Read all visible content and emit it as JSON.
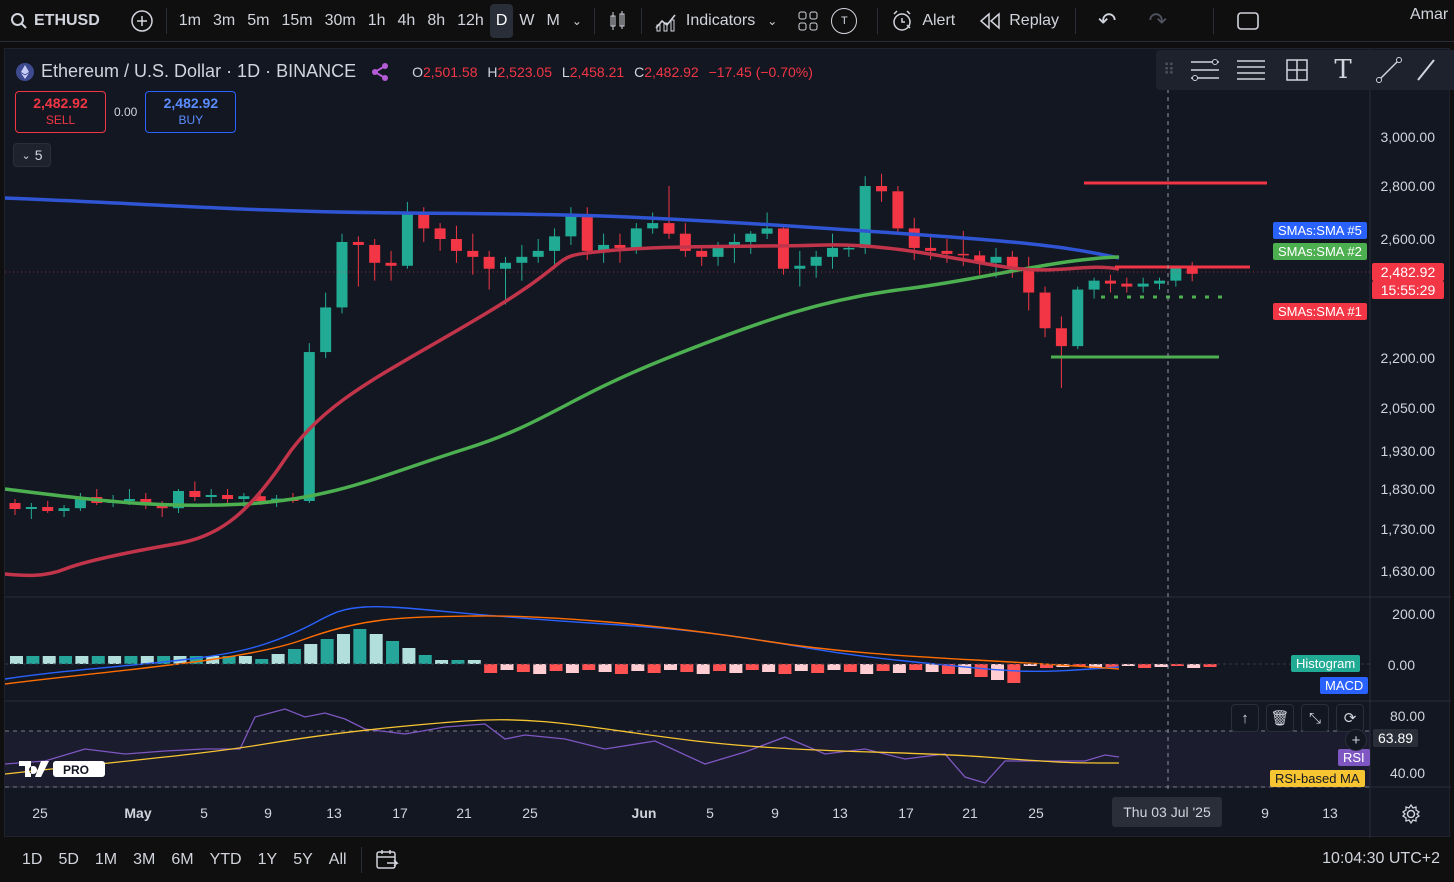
{
  "toolbar": {
    "symbol": "ETHUSD",
    "intervals": [
      "1m",
      "3m",
      "5m",
      "15m",
      "30m",
      "1h",
      "4h",
      "8h",
      "12h",
      "D",
      "W",
      "M"
    ],
    "active_interval": "D",
    "indicators_label": "Indicators",
    "t_label": "T",
    "alert_label": "Alert",
    "replay_label": "Replay",
    "user_label": "Amar"
  },
  "legend": {
    "title": "Ethereum / U.S. Dollar · 1D · BINANCE",
    "o_key": "O",
    "o_val": "2,501.58",
    "h_key": "H",
    "h_val": "2,523.05",
    "l_key": "L",
    "l_val": "2,458.21",
    "c_key": "C",
    "c_val": "2,482.92",
    "change": "−17.45 (−0.70%)"
  },
  "trade": {
    "sell_price": "2,482.92",
    "sell_label": "SELL",
    "spread": "0.00",
    "buy_price": "2,482.92",
    "buy_label": "BUY"
  },
  "collapse_count": "5",
  "price_axis": {
    "labels": [
      "3,000.00",
      "2,800.00",
      "2,600.00",
      "2,200.00",
      "2,050.00",
      "1,930.00",
      "1,830.00",
      "1,730.00",
      "1,630.00"
    ],
    "current_price": "2,482.92",
    "countdown": "15:55:29"
  },
  "tags": {
    "sma5": "SMAs:SMA #5",
    "sma2": "SMAs:SMA #2",
    "sma1": "SMAs:SMA #1",
    "histogram": "Histogram",
    "macd": "MACD",
    "rsi": "RSI",
    "rsi_ma": "RSI-based MA"
  },
  "macd_axis": {
    "top": "200.00",
    "zero": "0.00"
  },
  "rsi_axis": {
    "top": "80.00",
    "value": "63.89",
    "bottom": "40.00"
  },
  "date_axis": {
    "labels": [
      "25",
      "May",
      "5",
      "9",
      "13",
      "17",
      "21",
      "25",
      "Jun",
      "5",
      "9",
      "13",
      "17",
      "21",
      "25",
      "9",
      "13"
    ],
    "crosshair_date": "Thu 03 Jul '25"
  },
  "bottom": {
    "ranges": [
      "1D",
      "5D",
      "1M",
      "3M",
      "6M",
      "YTD",
      "1Y",
      "5Y",
      "All"
    ],
    "clock": "10:04:30 UTC+2"
  },
  "colors": {
    "up": "#22ab94",
    "down": "#f23645",
    "sma_blue": "#2f55d4",
    "sma_green": "#4caf50",
    "sma_red": "#c2344a",
    "bg": "#131722"
  },
  "chart_data": {
    "type": "candlestick",
    "ylim": [
      1590,
      3080
    ],
    "candles": [
      [
        1795,
        1805,
        1765,
        1780
      ],
      [
        1780,
        1795,
        1755,
        1785
      ],
      [
        1785,
        1800,
        1770,
        1775
      ],
      [
        1775,
        1790,
        1760,
        1782
      ],
      [
        1782,
        1820,
        1775,
        1810
      ],
      [
        1810,
        1830,
        1790,
        1795
      ],
      [
        1795,
        1815,
        1785,
        1800
      ],
      [
        1800,
        1830,
        1790,
        1805
      ],
      [
        1805,
        1820,
        1780,
        1790
      ],
      [
        1790,
        1800,
        1760,
        1782
      ],
      [
        1782,
        1830,
        1770,
        1825
      ],
      [
        1825,
        1850,
        1800,
        1810
      ],
      [
        1810,
        1830,
        1790,
        1815
      ],
      [
        1815,
        1830,
        1795,
        1805
      ],
      [
        1805,
        1820,
        1785,
        1812
      ],
      [
        1812,
        1822,
        1790,
        1800
      ],
      [
        1800,
        1815,
        1785,
        1806
      ],
      [
        1806,
        1820,
        1795,
        1800
      ],
      [
        1800,
        2250,
        1795,
        2220
      ],
      [
        2220,
        2420,
        2200,
        2370
      ],
      [
        2370,
        2620,
        2350,
        2590
      ],
      [
        2590,
        2610,
        2440,
        2580
      ],
      [
        2580,
        2600,
        2460,
        2520
      ],
      [
        2520,
        2560,
        2460,
        2510
      ],
      [
        2510,
        2740,
        2500,
        2700
      ],
      [
        2700,
        2720,
        2590,
        2640
      ],
      [
        2640,
        2660,
        2560,
        2600
      ],
      [
        2600,
        2650,
        2520,
        2560
      ],
      [
        2560,
        2620,
        2480,
        2540
      ],
      [
        2540,
        2560,
        2430,
        2500
      ],
      [
        2500,
        2540,
        2380,
        2520
      ],
      [
        2520,
        2580,
        2460,
        2540
      ],
      [
        2540,
        2600,
        2520,
        2560
      ],
      [
        2560,
        2640,
        2500,
        2610
      ],
      [
        2610,
        2720,
        2580,
        2690
      ],
      [
        2690,
        2720,
        2530,
        2560
      ],
      [
        2560,
        2620,
        2520,
        2580
      ],
      [
        2580,
        2620,
        2520,
        2570
      ],
      [
        2570,
        2660,
        2550,
        2640
      ],
      [
        2640,
        2700,
        2620,
        2660
      ],
      [
        2660,
        2800,
        2600,
        2620
      ],
      [
        2620,
        2660,
        2540,
        2560
      ],
      [
        2560,
        2580,
        2510,
        2540
      ],
      [
        2540,
        2590,
        2510,
        2570
      ],
      [
        2570,
        2620,
        2520,
        2590
      ],
      [
        2590,
        2630,
        2550,
        2620
      ],
      [
        2620,
        2700,
        2600,
        2640
      ],
      [
        2640,
        2650,
        2480,
        2500
      ],
      [
        2500,
        2560,
        2440,
        2510
      ],
      [
        2510,
        2560,
        2470,
        2540
      ],
      [
        2540,
        2620,
        2500,
        2570
      ],
      [
        2570,
        2580,
        2540,
        2570
      ],
      [
        2570,
        2840,
        2550,
        2800
      ],
      [
        2800,
        2850,
        2740,
        2780
      ],
      [
        2780,
        2800,
        2620,
        2640
      ],
      [
        2640,
        2680,
        2530,
        2570
      ],
      [
        2570,
        2620,
        2530,
        2560
      ],
      [
        2560,
        2600,
        2520,
        2550
      ],
      [
        2550,
        2630,
        2510,
        2545
      ],
      [
        2545,
        2560,
        2480,
        2520
      ],
      [
        2520,
        2570,
        2470,
        2540
      ],
      [
        2540,
        2560,
        2470,
        2500
      ],
      [
        2500,
        2540,
        2360,
        2420
      ],
      [
        2420,
        2440,
        2270,
        2300
      ],
      [
        2300,
        2340,
        2110,
        2240
      ],
      [
        2240,
        2440,
        2230,
        2430
      ],
      [
        2430,
        2470,
        2400,
        2460
      ],
      [
        2460,
        2480,
        2420,
        2450
      ],
      [
        2450,
        2470,
        2420,
        2440
      ],
      [
        2440,
        2470,
        2420,
        2450
      ],
      [
        2450,
        2470,
        2430,
        2460
      ],
      [
        2460,
        2510,
        2440,
        2501
      ],
      [
        2501,
        2523,
        2458,
        2483
      ]
    ]
  }
}
